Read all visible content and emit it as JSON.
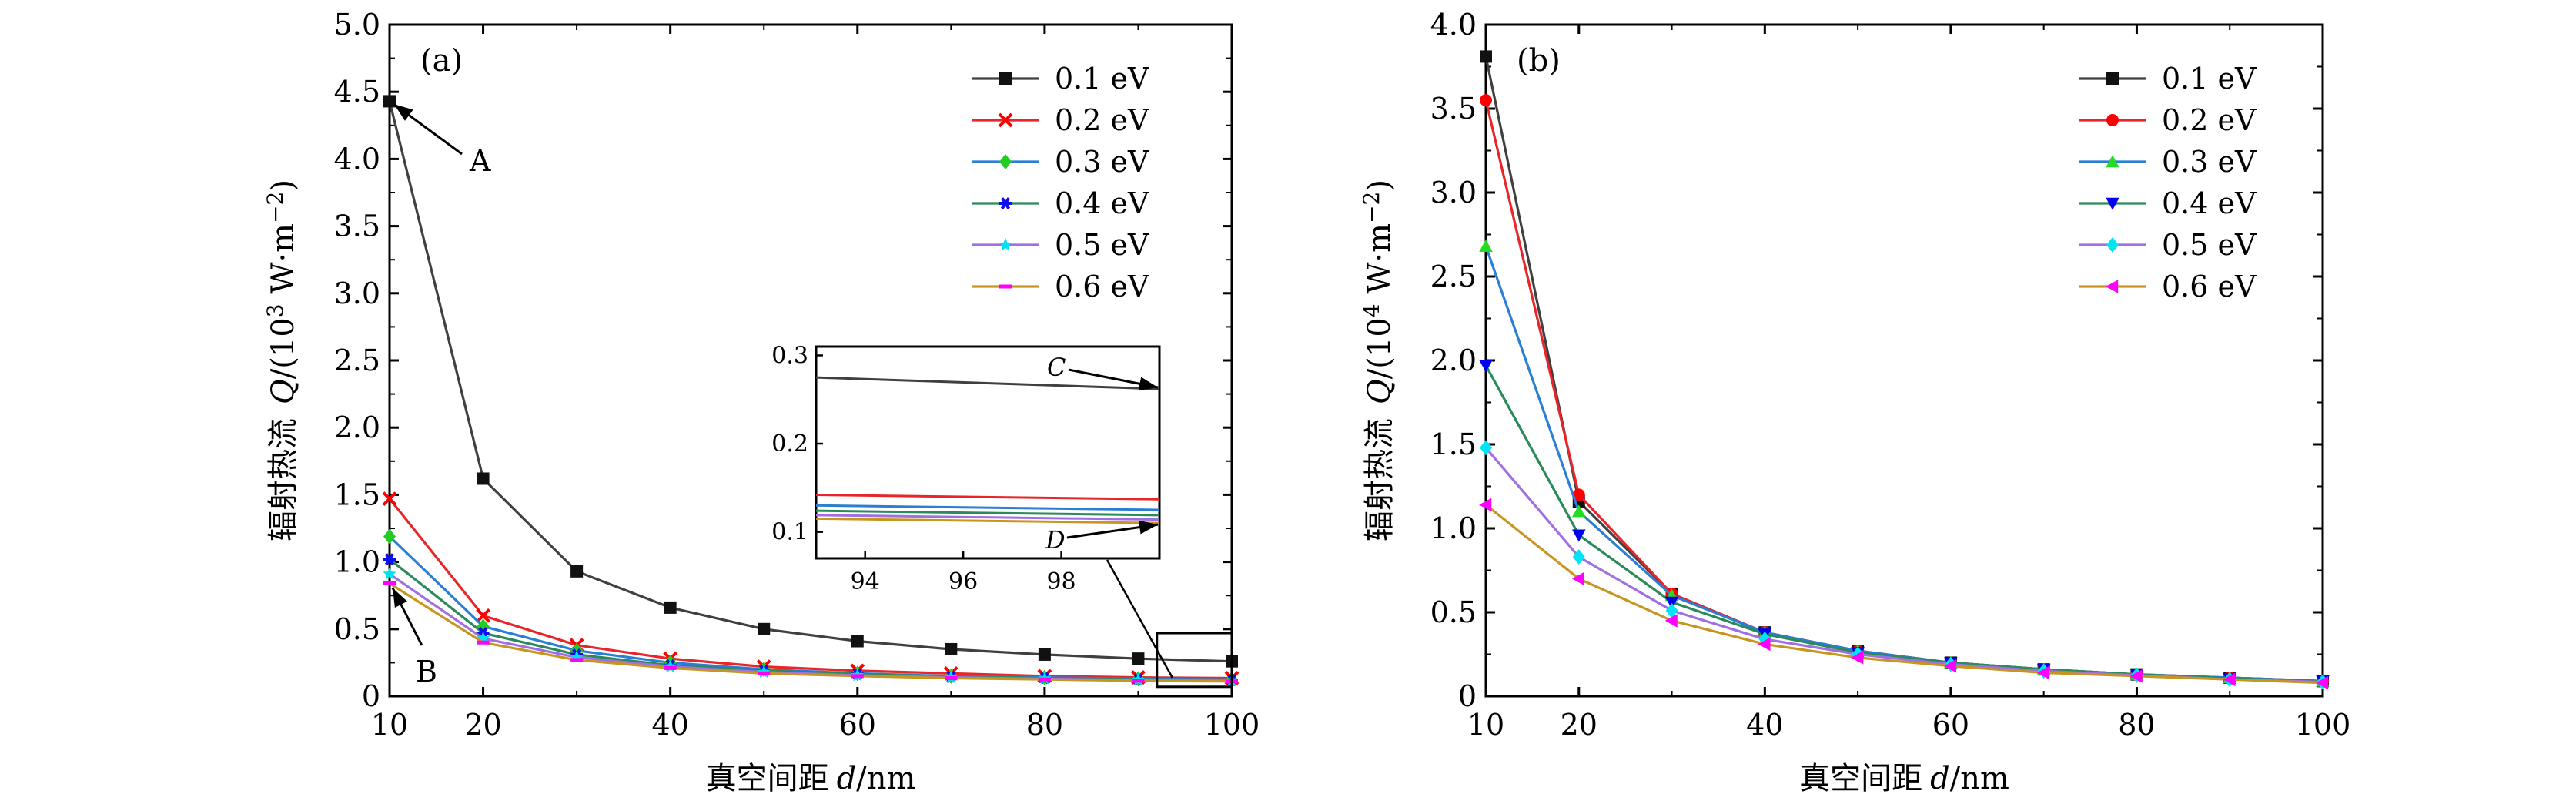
{
  "chart_data": [
    {
      "type": "line",
      "panel_label": "(a)",
      "xlabel_prefix": "真空间距",
      "xlabel_var": "d",
      "xlabel_unit": "/nm",
      "ylabel_prefix": "辐射热流",
      "ylabel_var": "Q",
      "ylabel_unit_pre": "/(10",
      "ylabel_exp": "3",
      "ylabel_unit_mid": " W·m",
      "ylabel_exp2": "−2",
      "ylabel_close": ")",
      "xlim": [
        10,
        100
      ],
      "ylim": [
        0,
        5.0
      ],
      "xticks": [
        10,
        20,
        40,
        60,
        80,
        100
      ],
      "xticklabels": [
        "10",
        "20",
        "40",
        "60",
        "80",
        "100"
      ],
      "yticks": [
        0,
        0.5,
        1.0,
        1.5,
        2.0,
        2.5,
        3.0,
        3.5,
        4.0,
        4.5,
        5.0
      ],
      "yticklabels": [
        "0",
        "0.5",
        "1.0",
        "1.5",
        "2.0",
        "2.5",
        "3.0",
        "3.5",
        "4.0",
        "4.5",
        "5.0"
      ],
      "x": [
        10,
        20,
        30,
        40,
        50,
        60,
        70,
        80,
        90,
        100
      ],
      "series": [
        {
          "name": "0.1 eV",
          "color": "#404040",
          "marker": "square",
          "values": [
            4.43,
            1.62,
            0.93,
            0.66,
            0.5,
            0.41,
            0.35,
            0.31,
            0.28,
            0.26
          ]
        },
        {
          "name": "0.2 eV",
          "color": "#e8262a",
          "marker": "x",
          "values": [
            1.47,
            0.6,
            0.38,
            0.28,
            0.22,
            0.19,
            0.17,
            0.15,
            0.14,
            0.135
          ]
        },
        {
          "name": "0.3 eV",
          "color": "#2a7fd4",
          "marker": "diamond",
          "values": [
            1.19,
            0.52,
            0.34,
            0.25,
            0.2,
            0.17,
            0.15,
            0.14,
            0.13,
            0.125
          ]
        },
        {
          "name": "0.4 eV",
          "color": "#2a8a5a",
          "marker": "star6",
          "values": [
            1.02,
            0.47,
            0.31,
            0.23,
            0.19,
            0.165,
            0.145,
            0.135,
            0.125,
            0.12
          ]
        },
        {
          "name": "0.5 eV",
          "color": "#a070e0",
          "marker": "star5",
          "values": [
            0.91,
            0.43,
            0.29,
            0.22,
            0.18,
            0.155,
            0.14,
            0.13,
            0.12,
            0.115
          ]
        },
        {
          "name": "0.6 eV",
          "color": "#c89620",
          "marker": "dash",
          "values": [
            0.84,
            0.4,
            0.27,
            0.21,
            0.17,
            0.15,
            0.135,
            0.125,
            0.115,
            0.11
          ]
        }
      ],
      "annotations": [
        {
          "text": "A",
          "x": 10,
          "y": 4.43
        },
        {
          "text": "B",
          "x": 10,
          "y": 0.84
        }
      ],
      "inset": {
        "xlim": [
          93,
          100
        ],
        "ylim": [
          0.07,
          0.31
        ],
        "xticks": [
          94,
          96,
          98
        ],
        "xticklabels": [
          "94",
          "96",
          "98"
        ],
        "yticks": [
          0.1,
          0.2,
          0.3
        ],
        "yticklabels": [
          "0.1",
          "0.2",
          "0.3"
        ],
        "zoom_box": {
          "x": [
            92,
            100
          ],
          "y": [
            0.07,
            0.47
          ]
        },
        "series": [
          {
            "name": "0.1 eV",
            "color": "#404040",
            "values": [
              0.275,
              0.262
            ]
          },
          {
            "name": "0.2 eV",
            "color": "#e8262a",
            "values": [
              0.142,
              0.137
            ]
          },
          {
            "name": "0.3 eV",
            "color": "#2a7fd4",
            "values": [
              0.13,
              0.125
            ]
          },
          {
            "name": "0.4 eV",
            "color": "#2a8a5a",
            "values": [
              0.124,
              0.119
            ]
          },
          {
            "name": "0.5 eV",
            "color": "#a070e0",
            "values": [
              0.119,
              0.114
            ]
          },
          {
            "name": "0.6 eV",
            "color": "#c89620",
            "values": [
              0.115,
              0.11
            ]
          }
        ],
        "annotations": [
          {
            "text": "C",
            "x": 100,
            "y": 0.262
          },
          {
            "text": "D",
            "x": 100,
            "y": 0.11
          }
        ]
      }
    },
    {
      "type": "line",
      "panel_label": "(b)",
      "xlabel_prefix": "真空间距",
      "xlabel_var": "d",
      "xlabel_unit": "/nm",
      "ylabel_prefix": "辐射热流",
      "ylabel_var": "Q",
      "ylabel_unit_pre": "/(10",
      "ylabel_exp": "4",
      "ylabel_unit_mid": " W·m",
      "ylabel_exp2": "−2",
      "ylabel_close": ")",
      "xlim": [
        10,
        100
      ],
      "ylim": [
        0,
        4.0
      ],
      "xticks": [
        10,
        20,
        40,
        60,
        80,
        100
      ],
      "xticklabels": [
        "10",
        "20",
        "40",
        "60",
        "80",
        "100"
      ],
      "yticks": [
        0,
        0.5,
        1.0,
        1.5,
        2.0,
        2.5,
        3.0,
        3.5,
        4.0
      ],
      "yticklabels": [
        "0",
        "0.5",
        "1.0",
        "1.5",
        "2.0",
        "2.5",
        "3.0",
        "3.5",
        "4.0"
      ],
      "x": [
        10,
        20,
        30,
        40,
        50,
        60,
        70,
        80,
        90,
        100
      ],
      "series": [
        {
          "name": "0.1 eV",
          "color": "#404040",
          "marker": "square",
          "values": [
            3.81,
            1.16,
            0.61,
            0.38,
            0.27,
            0.2,
            0.16,
            0.13,
            0.11,
            0.09
          ]
        },
        {
          "name": "0.2 eV",
          "color": "#e8262a",
          "marker": "circle",
          "values": [
            3.55,
            1.2,
            0.61,
            0.38,
            0.27,
            0.2,
            0.16,
            0.13,
            0.11,
            0.09
          ]
        },
        {
          "name": "0.3 eV",
          "color": "#2a7fd4",
          "marker": "triangle-up",
          "values": [
            2.68,
            1.1,
            0.6,
            0.38,
            0.27,
            0.2,
            0.16,
            0.13,
            0.11,
            0.09
          ]
        },
        {
          "name": "0.4 eV",
          "color": "#2a8a5a",
          "marker": "triangle-down",
          "values": [
            1.97,
            0.96,
            0.56,
            0.37,
            0.26,
            0.2,
            0.16,
            0.13,
            0.105,
            0.09
          ]
        },
        {
          "name": "0.5 eV",
          "color": "#a070e0",
          "marker": "diamond",
          "values": [
            1.48,
            0.83,
            0.51,
            0.34,
            0.25,
            0.19,
            0.15,
            0.125,
            0.1,
            0.085
          ]
        },
        {
          "name": "0.6 eV",
          "color": "#c89620",
          "marker": "triangle-left",
          "values": [
            1.14,
            0.7,
            0.45,
            0.31,
            0.23,
            0.18,
            0.14,
            0.12,
            0.1,
            0.08
          ]
        }
      ],
      "marker_colors": {
        "0.1 eV": "#111111",
        "0.2 eV": "#ff0000",
        "0.3 eV": "#22dd22",
        "0.4 eV": "#0000ee",
        "0.5 eV": "#00e5f5",
        "0.6 eV": "#ff00ff"
      }
    }
  ],
  "legend_marker_colors_a": {
    "0.1 eV": "#111111",
    "0.2 eV": "#ff0000",
    "0.3 eV": "#22cc22",
    "0.4 eV": "#1010ee",
    "0.5 eV": "#00e0f0",
    "0.6 eV": "#ff00ff"
  }
}
